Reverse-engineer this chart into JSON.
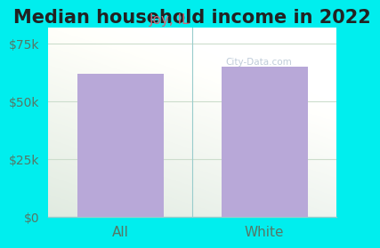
{
  "title": "Median household income in 2022",
  "subtitle": "Joy, IL",
  "categories": [
    "All",
    "White"
  ],
  "values": [
    62000,
    65000
  ],
  "bar_color": "#b8a8d8",
  "background_color": "#00EEEE",
  "yticks": [
    0,
    25000,
    50000,
    75000
  ],
  "ytick_labels": [
    "$0",
    "$25k",
    "$50k",
    "$75k"
  ],
  "ylim": [
    0,
    82000
  ],
  "title_fontsize": 15,
  "subtitle_fontsize": 11,
  "subtitle_color": "#cc6677",
  "tick_color": "#557766",
  "axis_label_fontsize": 11,
  "watermark": "City-Data.com",
  "grid_color": "#ccddcc",
  "divider_color": "#99cccc"
}
